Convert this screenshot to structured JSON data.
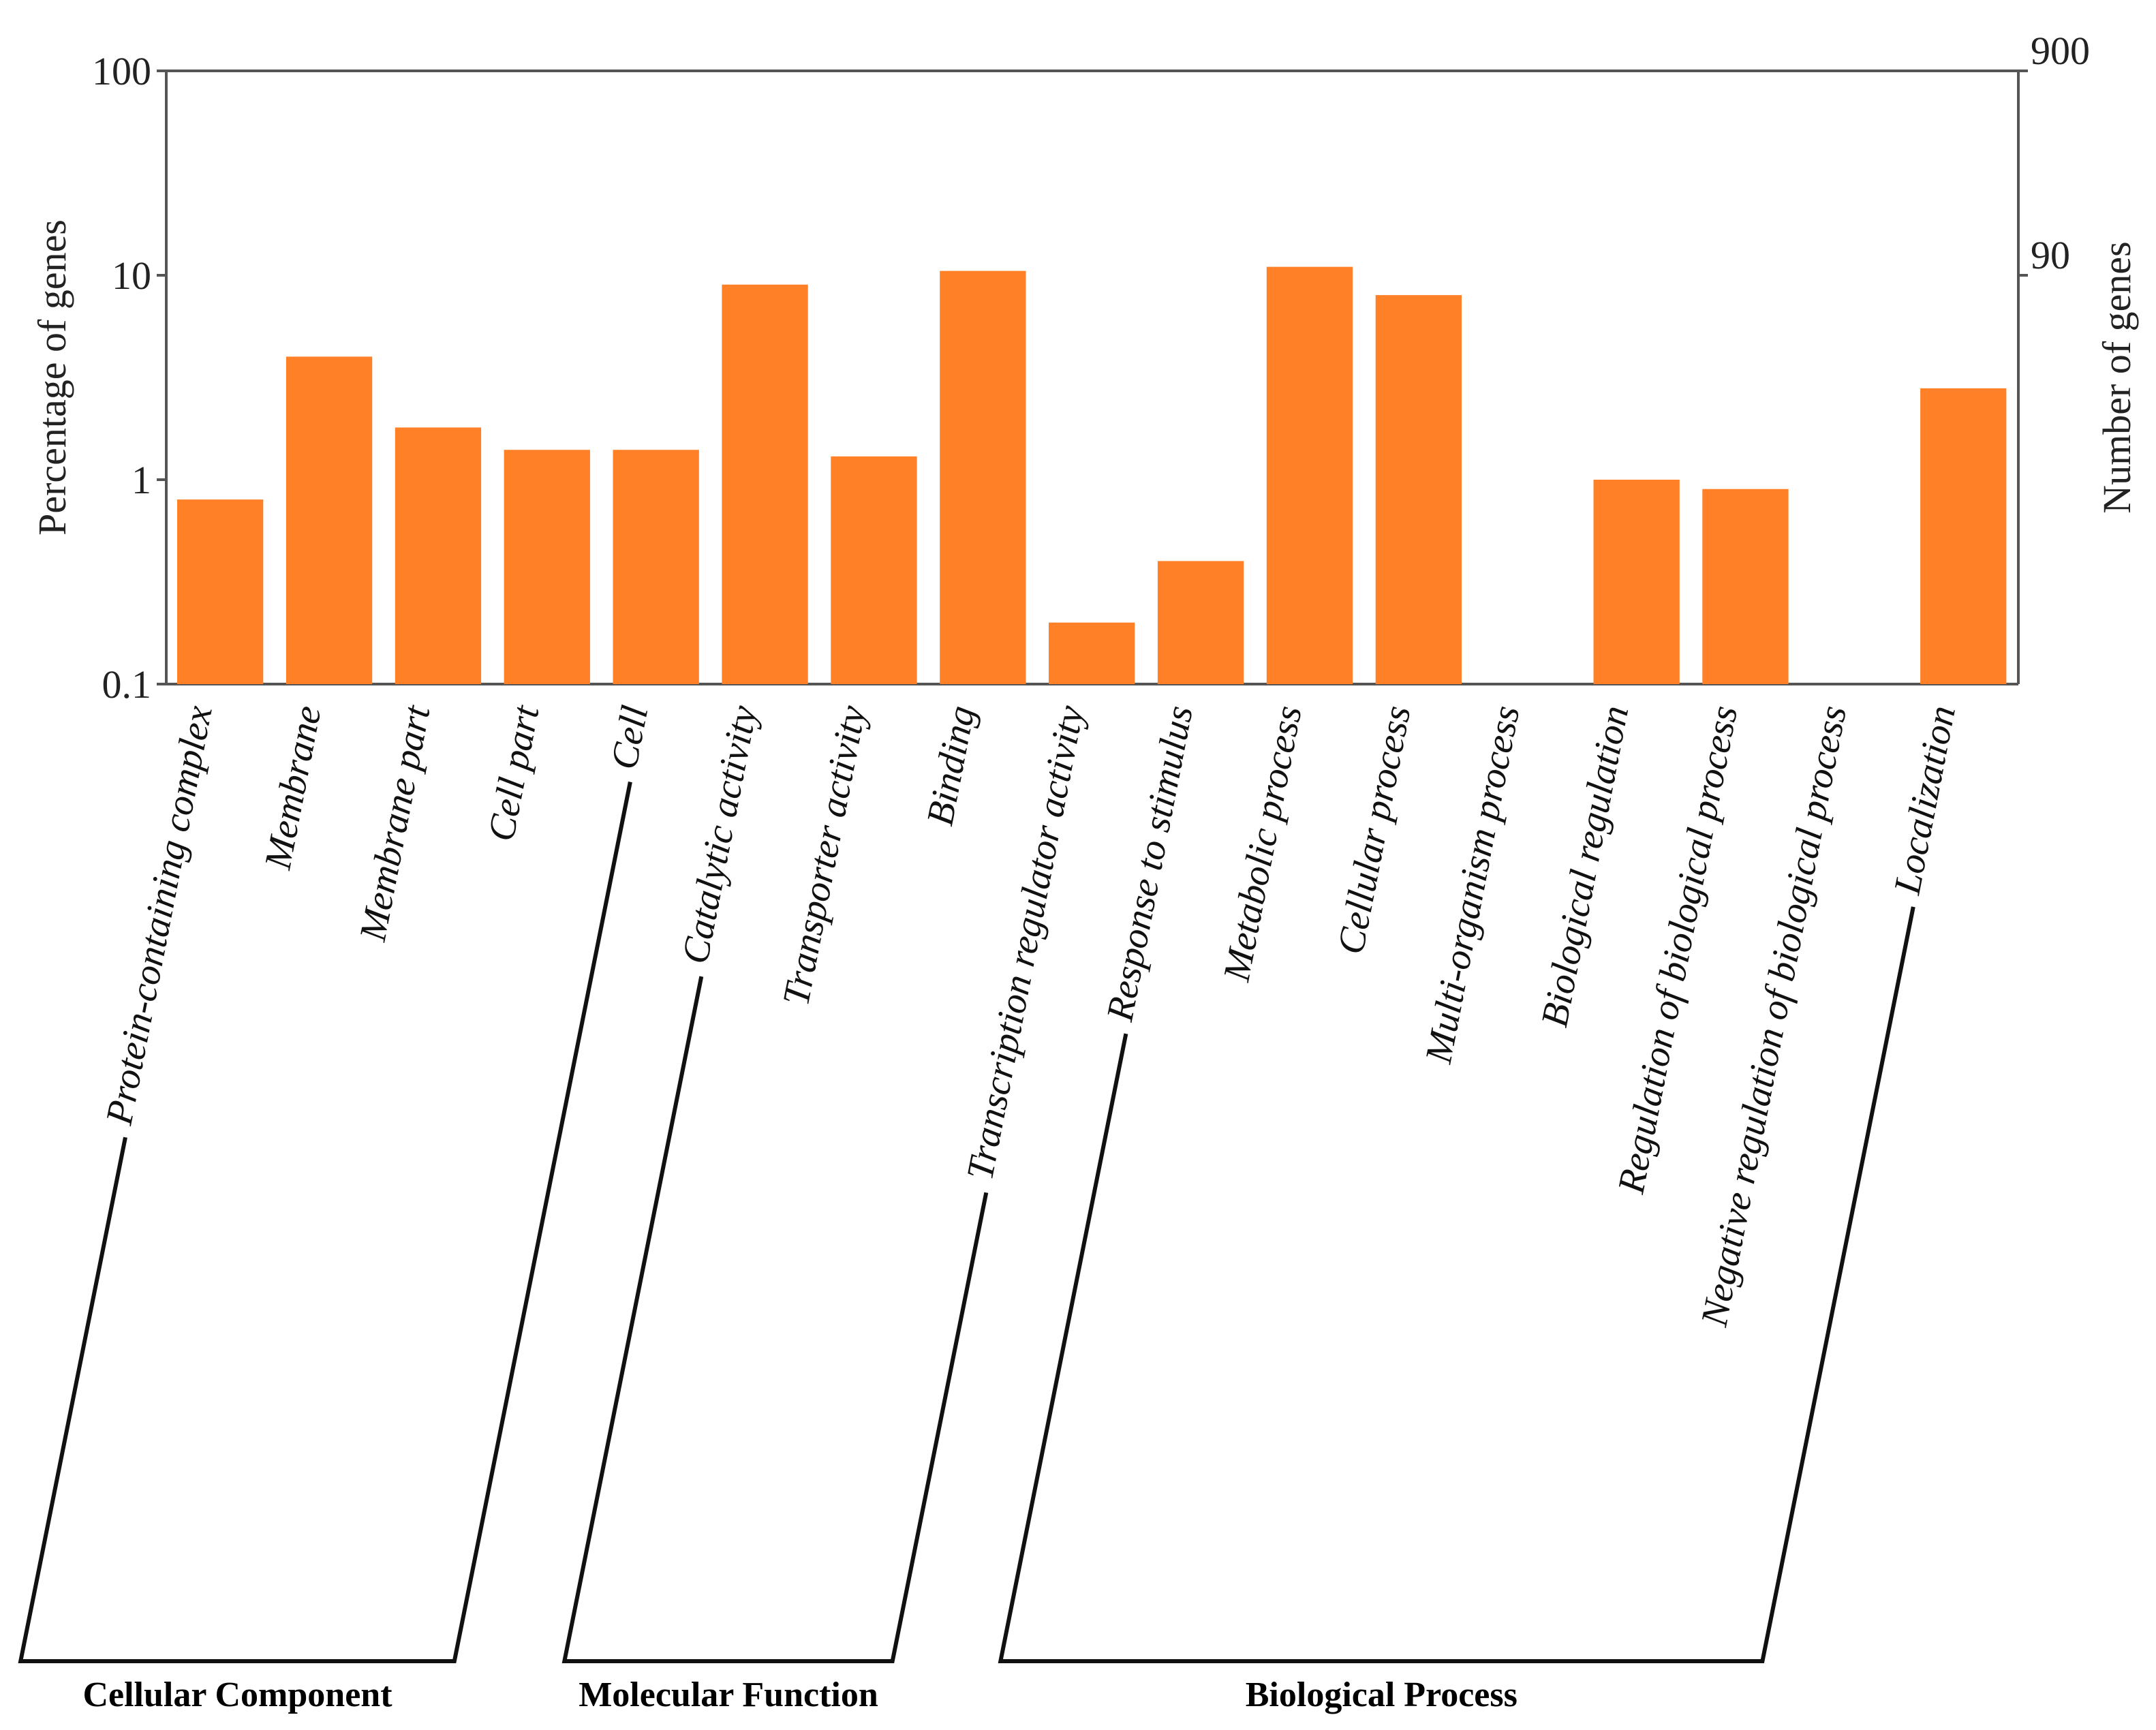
{
  "chart_data": {
    "type": "bar",
    "scale": "log",
    "title": "",
    "ylabel": "Percentage of genes",
    "y2label": "Number of genes",
    "ylim": [
      0.1,
      100
    ],
    "yticks": [
      "100",
      "10",
      "1",
      "0.1"
    ],
    "y2ticks": [
      "900",
      "90"
    ],
    "bar_color": "#ff8026",
    "categories": [
      "Protein-containing complex",
      "Membrane",
      "Membrane part",
      "Cell part",
      "Cell",
      "Catalytic activity",
      "Transporter activity",
      "Binding",
      "Transcription regulator activity",
      "Response to stimulus",
      "Metabolic process",
      "Cellular process",
      "Multi-organism process",
      "Biological regulation",
      "Regulation of biological process",
      "Negative regulation of biological process",
      "Localization"
    ],
    "values": [
      0.8,
      4.0,
      1.8,
      1.4,
      1.4,
      9.0,
      1.3,
      10.5,
      0.2,
      0.4,
      11.0,
      8.0,
      null,
      1.0,
      0.9,
      null,
      2.8
    ],
    "groups": [
      {
        "name": "Cellular Component",
        "start": 0,
        "end": 4
      },
      {
        "name": "Molecular Function",
        "start": 5,
        "end": 8
      },
      {
        "name": "Biological Process",
        "start": 9,
        "end": 16
      }
    ]
  }
}
